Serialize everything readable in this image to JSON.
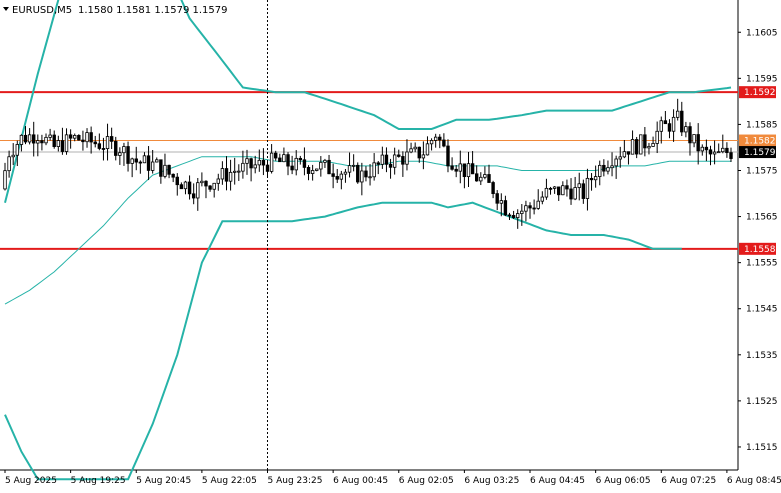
{
  "chart_data": {
    "type": "candlestick",
    "symbol_label": "EURUSD,M5",
    "ohlc_header": "1.1580 1.1581 1.1579 1.1579",
    "ylim": [
      1.151,
      1.1612
    ],
    "y_ticks": [
      "1.1605",
      "1.1595",
      "1.1585",
      "1.1575",
      "1.1565",
      "1.1555",
      "1.1545",
      "1.1535",
      "1.1525",
      "1.1515"
    ],
    "x_ticks": [
      {
        "label": "5 Aug 2025",
        "index": 0
      },
      {
        "label": "5 Aug 19:25",
        "index": 16
      },
      {
        "label": "5 Aug 20:45",
        "index": 32
      },
      {
        "label": "5 Aug 22:05",
        "index": 48
      },
      {
        "label": "5 Aug 23:25",
        "index": 64
      },
      {
        "label": "6 Aug 00:45",
        "index": 80
      },
      {
        "label": "6 Aug 02:05",
        "index": 96
      },
      {
        "label": "6 Aug 03:25",
        "index": 112
      },
      {
        "label": "6 Aug 04:45",
        "index": 128
      },
      {
        "label": "6 Aug 06:05",
        "index": 144
      },
      {
        "label": "6 Aug 07:25",
        "index": 160
      },
      {
        "label": "6 Aug 08:45",
        "index": 176
      }
    ],
    "bar_count": 178,
    "price_path": [
      [
        0,
        1.1571
      ],
      [
        2,
        1.1579
      ],
      [
        5,
        1.1582
      ],
      [
        9,
        1.1583
      ],
      [
        13,
        1.158
      ],
      [
        18,
        1.1582
      ],
      [
        23,
        1.1581
      ],
      [
        29,
        1.158
      ],
      [
        33,
        1.1577
      ],
      [
        38,
        1.1576
      ],
      [
        43,
        1.1573
      ],
      [
        47,
        1.1571
      ],
      [
        52,
        1.1573
      ],
      [
        57,
        1.1575
      ],
      [
        62,
        1.1576
      ],
      [
        67,
        1.1577
      ],
      [
        72,
        1.1576
      ],
      [
        77,
        1.1576
      ],
      [
        82,
        1.1575
      ],
      [
        88,
        1.1574
      ],
      [
        94,
        1.1577
      ],
      [
        99,
        1.1578
      ],
      [
        103,
        1.1579
      ],
      [
        106,
        1.1583
      ],
      [
        109,
        1.1578
      ],
      [
        113,
        1.1575
      ],
      [
        117,
        1.1573
      ],
      [
        120,
        1.1571
      ],
      [
        123,
        1.1567
      ],
      [
        126,
        1.1566
      ],
      [
        129,
        1.1567
      ],
      [
        133,
        1.157
      ],
      [
        138,
        1.1571
      ],
      [
        142,
        1.157
      ],
      [
        145,
        1.1575
      ],
      [
        149,
        1.1578
      ],
      [
        153,
        1.158
      ],
      [
        157,
        1.1581
      ],
      [
        161,
        1.1584
      ],
      [
        165,
        1.1586
      ],
      [
        168,
        1.1582
      ],
      [
        171,
        1.1579
      ],
      [
        174,
        1.1578
      ],
      [
        177,
        1.1579
      ]
    ],
    "bollinger_upper": [
      [
        0,
        1.1568
      ],
      [
        4,
        1.1582
      ],
      [
        8,
        1.1596
      ],
      [
        13,
        1.1612
      ],
      [
        15,
        1.1618
      ],
      [
        40,
        1.1618
      ],
      [
        45,
        1.1608
      ],
      [
        52,
        1.16
      ],
      [
        58,
        1.1593
      ],
      [
        66,
        1.1592
      ],
      [
        73,
        1.1592
      ],
      [
        80,
        1.159
      ],
      [
        90,
        1.1587
      ],
      [
        96,
        1.1584
      ],
      [
        100,
        1.1584
      ],
      [
        104,
        1.1584
      ],
      [
        110,
        1.1586
      ],
      [
        118,
        1.1586
      ],
      [
        126,
        1.1587
      ],
      [
        132,
        1.1588
      ],
      [
        140,
        1.1588
      ],
      [
        148,
        1.1588
      ],
      [
        155,
        1.159
      ],
      [
        162,
        1.1592
      ],
      [
        168,
        1.1592
      ],
      [
        177,
        1.1593
      ]
    ],
    "bollinger_middle": [
      [
        0,
        1.1546
      ],
      [
        6,
        1.1549
      ],
      [
        12,
        1.1553
      ],
      [
        18,
        1.1558
      ],
      [
        24,
        1.1563
      ],
      [
        30,
        1.1569
      ],
      [
        36,
        1.1574
      ],
      [
        42,
        1.1576
      ],
      [
        48,
        1.1578
      ],
      [
        54,
        1.1578
      ],
      [
        60,
        1.1578
      ],
      [
        66,
        1.1577
      ],
      [
        72,
        1.1577
      ],
      [
        78,
        1.1577
      ],
      [
        84,
        1.1576
      ],
      [
        90,
        1.1576
      ],
      [
        96,
        1.1577
      ],
      [
        102,
        1.1577
      ],
      [
        108,
        1.1576
      ],
      [
        114,
        1.1576
      ],
      [
        120,
        1.1576
      ],
      [
        126,
        1.1575
      ],
      [
        132,
        1.1575
      ],
      [
        138,
        1.1575
      ],
      [
        144,
        1.1575
      ],
      [
        150,
        1.1576
      ],
      [
        156,
        1.1576
      ],
      [
        162,
        1.1577
      ],
      [
        168,
        1.1577
      ],
      [
        177,
        1.1577
      ]
    ],
    "bollinger_lower": [
      [
        0,
        1.1522
      ],
      [
        4,
        1.1514
      ],
      [
        8,
        1.1508
      ],
      [
        30,
        1.1508
      ],
      [
        36,
        1.152
      ],
      [
        42,
        1.1535
      ],
      [
        48,
        1.1555
      ],
      [
        53,
        1.1564
      ],
      [
        58,
        1.1564
      ],
      [
        64,
        1.1564
      ],
      [
        70,
        1.1564
      ],
      [
        78,
        1.1565
      ],
      [
        86,
        1.1567
      ],
      [
        92,
        1.1568
      ],
      [
        98,
        1.1568
      ],
      [
        104,
        1.1568
      ],
      [
        108,
        1.1567
      ],
      [
        114,
        1.1568
      ],
      [
        120,
        1.1566
      ],
      [
        126,
        1.1564
      ],
      [
        132,
        1.1562
      ],
      [
        138,
        1.1561
      ],
      [
        146,
        1.1561
      ],
      [
        152,
        1.156
      ],
      [
        158,
        1.1558
      ],
      [
        165,
        1.1558
      ]
    ],
    "horizontal_levels": [
      {
        "label": "1.1592",
        "value": 1.1592,
        "color": "#e31b1b",
        "style": "solid-thick"
      },
      {
        "label": "1.1558",
        "value": 1.1558,
        "color": "#e31b1b",
        "style": "solid-thick"
      },
      {
        "label": "1.1582",
        "value": 1.15815,
        "color": "#f08a3c",
        "style": "solid-thin"
      },
      {
        "label": "1.1579",
        "value": 1.1579,
        "color": "#b0b0b0",
        "style": "solid-thin"
      }
    ],
    "vertical_marker_index": 64,
    "colors": {
      "candle": "#000000",
      "bollinger": "#26b3a8",
      "bollinger_middle": "#26b3a8",
      "level_red": "#e31b1b",
      "level_orange": "#f08a3c",
      "current_tag": "#000000"
    }
  }
}
